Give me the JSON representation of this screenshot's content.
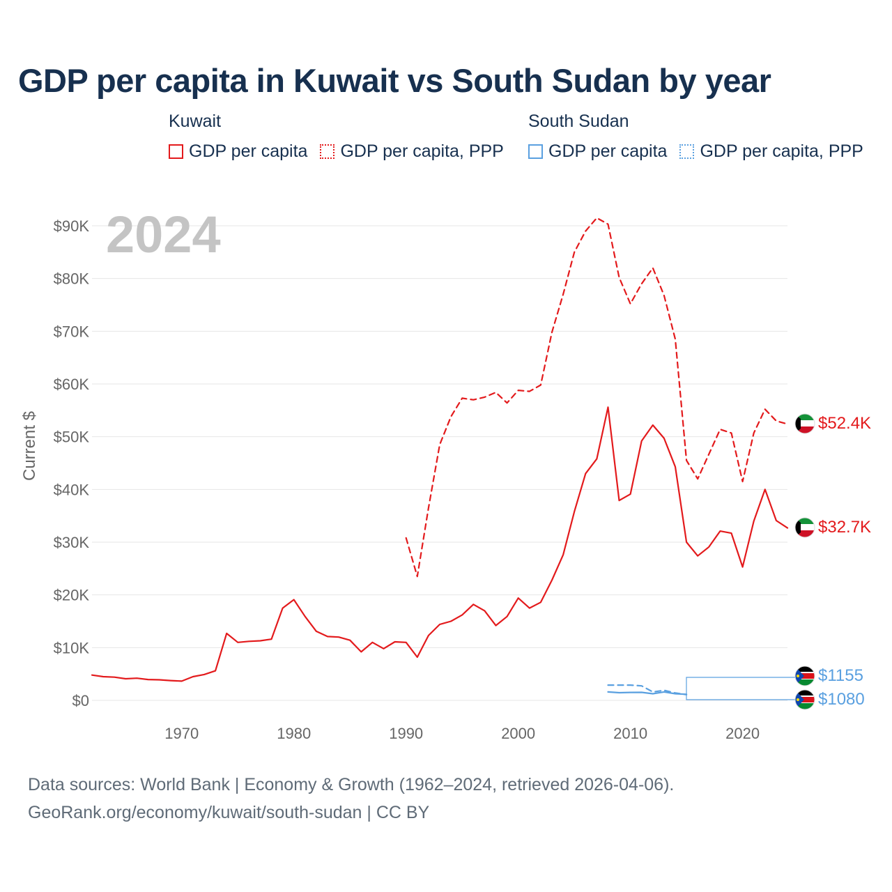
{
  "title": "GDP per capita in Kuwait vs South Sudan by year",
  "legend": {
    "groups": [
      {
        "country": "Kuwait",
        "items": [
          "GDP per capita",
          "GDP per capita, PPP"
        ],
        "color": "#e31a1c"
      },
      {
        "country": "South Sudan",
        "items": [
          "GDP per capita",
          "GDP per capita, PPP"
        ],
        "color": "#5aa0e0"
      }
    ]
  },
  "year_label": "2024",
  "end_labels": {
    "kuwait_ppp": "$52.4K",
    "kuwait_gdp": "$32.7K",
    "south_sudan_gdp": "$1155",
    "south_sudan_ppp": "$1080"
  },
  "footer": {
    "line1": "Data sources: World Bank | Economy & Growth (1962–2024, retrieved 2026-04-06).",
    "line2": "GeoRank.org/economy/kuwait/south-sudan | CC BY"
  },
  "colors": {
    "kuwait": "#e31a1c",
    "south_sudan": "#5aa0e0",
    "grid": "#e6e6e6",
    "axis_text": "#666666",
    "year": "#c4c4c4"
  },
  "chart_data": {
    "type": "line",
    "ylabel": "Current $",
    "xlim": [
      1962,
      2024
    ],
    "ylim": [
      0,
      90000
    ],
    "yticks": [
      0,
      10000,
      20000,
      30000,
      40000,
      50000,
      60000,
      70000,
      80000,
      90000
    ],
    "ytick_labels": [
      "$0",
      "$10K",
      "$20K",
      "$30K",
      "$40K",
      "$50K",
      "$60K",
      "$70K",
      "$80K",
      "$90K"
    ],
    "xticks": [
      1970,
      1980,
      1990,
      2000,
      2010,
      2020
    ],
    "xtick_labels": [
      "1970",
      "1980",
      "1990",
      "2000",
      "2010",
      "2020"
    ],
    "series": [
      {
        "name": "Kuwait GDP per capita",
        "country": "Kuwait",
        "style": "solid",
        "x": [
          1962,
          1963,
          1964,
          1965,
          1966,
          1967,
          1968,
          1969,
          1970,
          1971,
          1972,
          1973,
          1974,
          1975,
          1976,
          1977,
          1978,
          1979,
          1980,
          1981,
          1982,
          1983,
          1984,
          1985,
          1986,
          1987,
          1988,
          1989,
          1990,
          1991,
          1992,
          1993,
          1994,
          1995,
          1996,
          1997,
          1998,
          1999,
          2000,
          2001,
          2002,
          2003,
          2004,
          2005,
          2006,
          2007,
          2008,
          2009,
          2010,
          2011,
          2012,
          2013,
          2014,
          2015,
          2016,
          2017,
          2018,
          2019,
          2020,
          2021,
          2022,
          2023,
          2024
        ],
        "y": [
          4800,
          4500,
          4400,
          4100,
          4200,
          3950,
          3900,
          3750,
          3650,
          4500,
          4900,
          5600,
          12700,
          11000,
          11200,
          11300,
          11600,
          17500,
          19100,
          15900,
          13100,
          12100,
          12000,
          11400,
          9200,
          11000,
          9800,
          11100,
          11000,
          8200,
          12300,
          14400,
          15000,
          16200,
          18200,
          17000,
          14200,
          15900,
          19400,
          17500,
          18600,
          22800,
          27600,
          35800,
          43000,
          45800,
          55600,
          37900,
          39100,
          49200,
          52200,
          49700,
          44300,
          30000,
          27400,
          29100,
          32100,
          31700,
          25300,
          34000,
          40000,
          34100,
          32700
        ]
      },
      {
        "name": "Kuwait GDP per capita, PPP",
        "country": "Kuwait",
        "style": "dashed",
        "x": [
          1990,
          1991,
          1992,
          1993,
          1994,
          1995,
          1996,
          1997,
          1998,
          1999,
          2000,
          2001,
          2002,
          2003,
          2004,
          2005,
          2006,
          2007,
          2008,
          2009,
          2010,
          2011,
          2012,
          2013,
          2014,
          2015,
          2016,
          2017,
          2018,
          2019,
          2020,
          2021,
          2022,
          2023,
          2024
        ],
        "y": [
          30800,
          23500,
          36500,
          48500,
          53800,
          57300,
          57000,
          57500,
          58400,
          56400,
          58800,
          58600,
          59800,
          69800,
          77000,
          85000,
          89000,
          91500,
          90300,
          80200,
          75200,
          79000,
          82000,
          76800,
          68500,
          45500,
          42000,
          46700,
          51400,
          50700,
          41500,
          50700,
          55200,
          53000,
          52400
        ]
      },
      {
        "name": "South Sudan GDP per capita",
        "country": "South Sudan",
        "style": "solid",
        "x": [
          2008,
          2009,
          2010,
          2011,
          2012,
          2013,
          2014,
          2015
        ],
        "y": [
          1600,
          1450,
          1500,
          1520,
          1250,
          1600,
          1250,
          1155
        ]
      },
      {
        "name": "South Sudan GDP per capita, PPP",
        "country": "South Sudan",
        "style": "dashed",
        "x": [
          2008,
          2009,
          2010,
          2011,
          2012,
          2013,
          2014,
          2015
        ],
        "y": [
          2900,
          2900,
          2900,
          2750,
          1600,
          1900,
          1400,
          1080
        ]
      }
    ]
  }
}
